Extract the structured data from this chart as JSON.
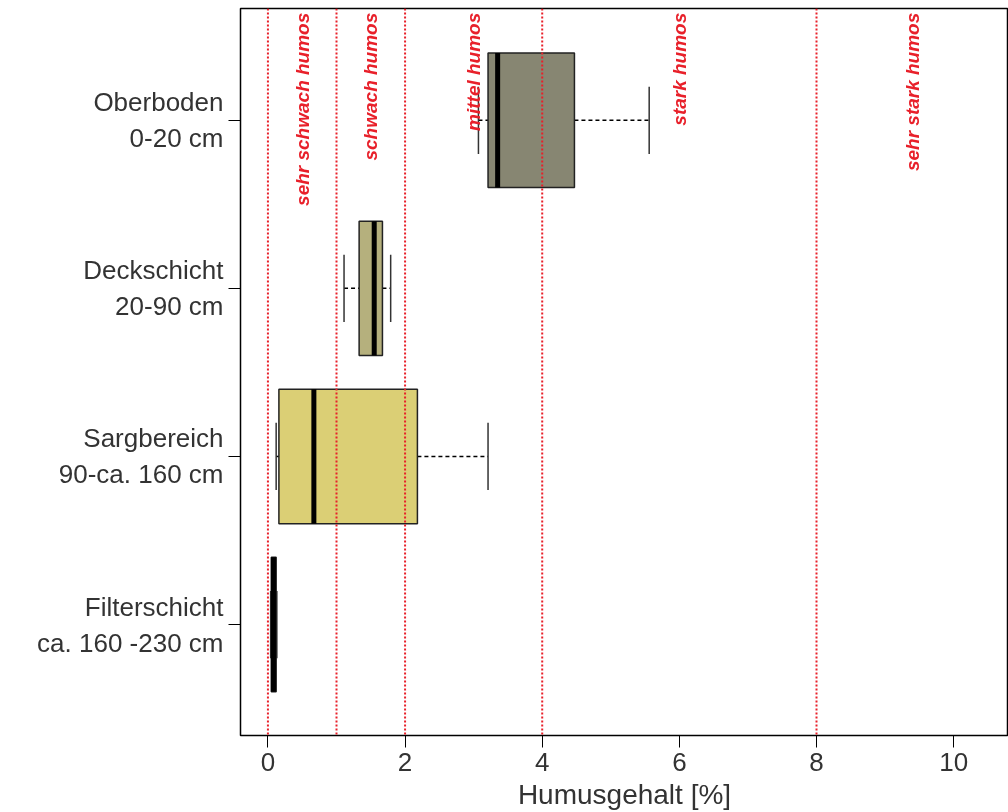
{
  "chart_data": {
    "type": "box",
    "orientation": "horizontal",
    "xlabel": "Humusgehalt [%]",
    "categories": [
      "Oberboden\n0-20 cm",
      "Deckschicht\n20-90 cm",
      "Sargbereich\n90-ca. 160 cm",
      "Filterschicht\nca. 160 -230 cm"
    ],
    "boxes": [
      {
        "low": 3.07,
        "q1": 3.21,
        "median": 3.35,
        "q3": 4.47,
        "high": 5.56
      },
      {
        "low": 1.11,
        "q1": 1.33,
        "median": 1.55,
        "q3": 1.67,
        "high": 1.79
      },
      {
        "low": 0.12,
        "q1": 0.16,
        "median": 0.67,
        "q3": 2.18,
        "high": 3.21
      },
      {
        "low": 0.04,
        "q1": 0.05,
        "median": 0.08,
        "q3": 0.12,
        "high": 0.13
      }
    ],
    "colors": [
      "#878672",
      "#b5b07d",
      "#dbcf75",
      "#000000"
    ],
    "xlim": [
      -0.4,
      10.8
    ],
    "xticks": [
      0,
      2,
      4,
      6,
      8,
      10
    ],
    "grid": false,
    "ref_lines": [
      {
        "axis": "x",
        "value": 0,
        "color": "#e8202a",
        "line_style": "dotted"
      },
      {
        "axis": "x",
        "value": 1,
        "color": "#e8202a",
        "line_style": "dotted"
      },
      {
        "axis": "x",
        "value": 2,
        "color": "#e8202a",
        "line_style": "dotted"
      },
      {
        "axis": "x",
        "value": 4,
        "color": "#e8202a",
        "line_style": "dotted"
      },
      {
        "axis": "x",
        "value": 8,
        "color": "#e8202a",
        "line_style": "dotted"
      }
    ],
    "annotations": [
      "sehr schwach humos",
      "schwach humos",
      "mittel humos",
      "stark humos",
      "sehr stark humos"
    ]
  }
}
